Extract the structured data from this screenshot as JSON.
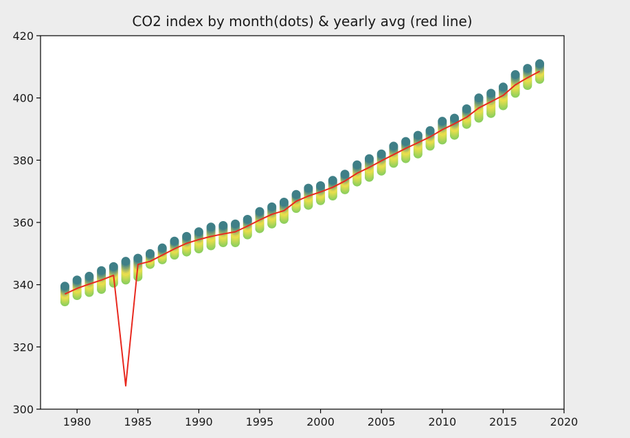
{
  "chart_data": {
    "type": "scatter",
    "title": "CO2 index by month(dots) & yearly avg (red line)",
    "xlabel": "",
    "ylabel": "",
    "xlim": [
      1977,
      2020
    ],
    "ylim": [
      300,
      420
    ],
    "xticks": [
      1980,
      1985,
      1990,
      1995,
      2000,
      2005,
      2010,
      2015,
      2020
    ],
    "yticks": [
      300,
      320,
      340,
      360,
      380,
      400,
      420
    ],
    "grid": false,
    "colors": {
      "background": "#ededed",
      "plot_background": "#ffffff",
      "line": "#e8281e",
      "dots_high": "#3f7f87",
      "dots_mid": "#f1e14a",
      "dots_low": "#8ecf5d"
    },
    "series": [
      {
        "kind": "scatter",
        "x": [
          1979,
          1980,
          1981,
          1982,
          1983,
          1984,
          1985,
          1986,
          1987,
          1988,
          1989,
          1990,
          1991,
          1992,
          1993,
          1994,
          1995,
          1996,
          1997,
          1998,
          1999,
          2000,
          2001,
          2002,
          2003,
          2004,
          2005,
          2006,
          2007,
          2008,
          2009,
          2010,
          2011,
          2012,
          2013,
          2014,
          2015,
          2016,
          2017,
          2018
        ],
        "y_max": [
          339.5,
          341.5,
          342.7,
          344.5,
          345.8,
          347.5,
          348.5,
          350,
          351.8,
          354,
          355.5,
          357,
          358.5,
          359,
          359.5,
          361,
          363.5,
          365,
          366.5,
          369,
          371,
          371.8,
          373.5,
          375.5,
          378.5,
          380.5,
          382,
          384.5,
          386,
          388,
          389.5,
          392.5,
          393.5,
          396.5,
          400,
          401.5,
          403.5,
          407.5,
          409.5,
          411
        ],
        "y_min": [
          334.5,
          336.5,
          337.5,
          338.5,
          340.5,
          341.5,
          342.5,
          346.5,
          348,
          349.5,
          350.5,
          351.5,
          352.5,
          353.5,
          353.5,
          356,
          358,
          359.5,
          361,
          364.5,
          365.5,
          367,
          368.5,
          370.5,
          373,
          374.5,
          376.5,
          379,
          380.5,
          382,
          384.5,
          386.5,
          388,
          391.5,
          393.5,
          395,
          397.5,
          401.5,
          404,
          406
        ]
      },
      {
        "kind": "line",
        "name": "yearly avg",
        "x": [
          1979,
          1980,
          1981,
          1982,
          1983,
          1984,
          1985,
          1986,
          1987,
          1988,
          1989,
          1990,
          1991,
          1992,
          1993,
          1994,
          1995,
          1996,
          1997,
          1998,
          1999,
          2000,
          2001,
          2002,
          2003,
          2004,
          2005,
          2006,
          2007,
          2008,
          2009,
          2010,
          2011,
          2012,
          2013,
          2014,
          2015,
          2016,
          2017,
          2018
        ],
        "y": [
          337,
          338.8,
          340.2,
          341.5,
          343,
          307.5,
          346.5,
          347.5,
          349.5,
          351.5,
          353.3,
          354.5,
          355.5,
          356.3,
          357,
          358.8,
          360.8,
          362.6,
          363.8,
          366.8,
          368.5,
          369.8,
          371.3,
          373.3,
          375.8,
          377.7,
          379.8,
          381.8,
          383.8,
          385.6,
          387.5,
          389.8,
          391.7,
          393.8,
          396.8,
          398.8,
          400.8,
          404.2,
          406.5,
          408.6
        ]
      }
    ]
  }
}
